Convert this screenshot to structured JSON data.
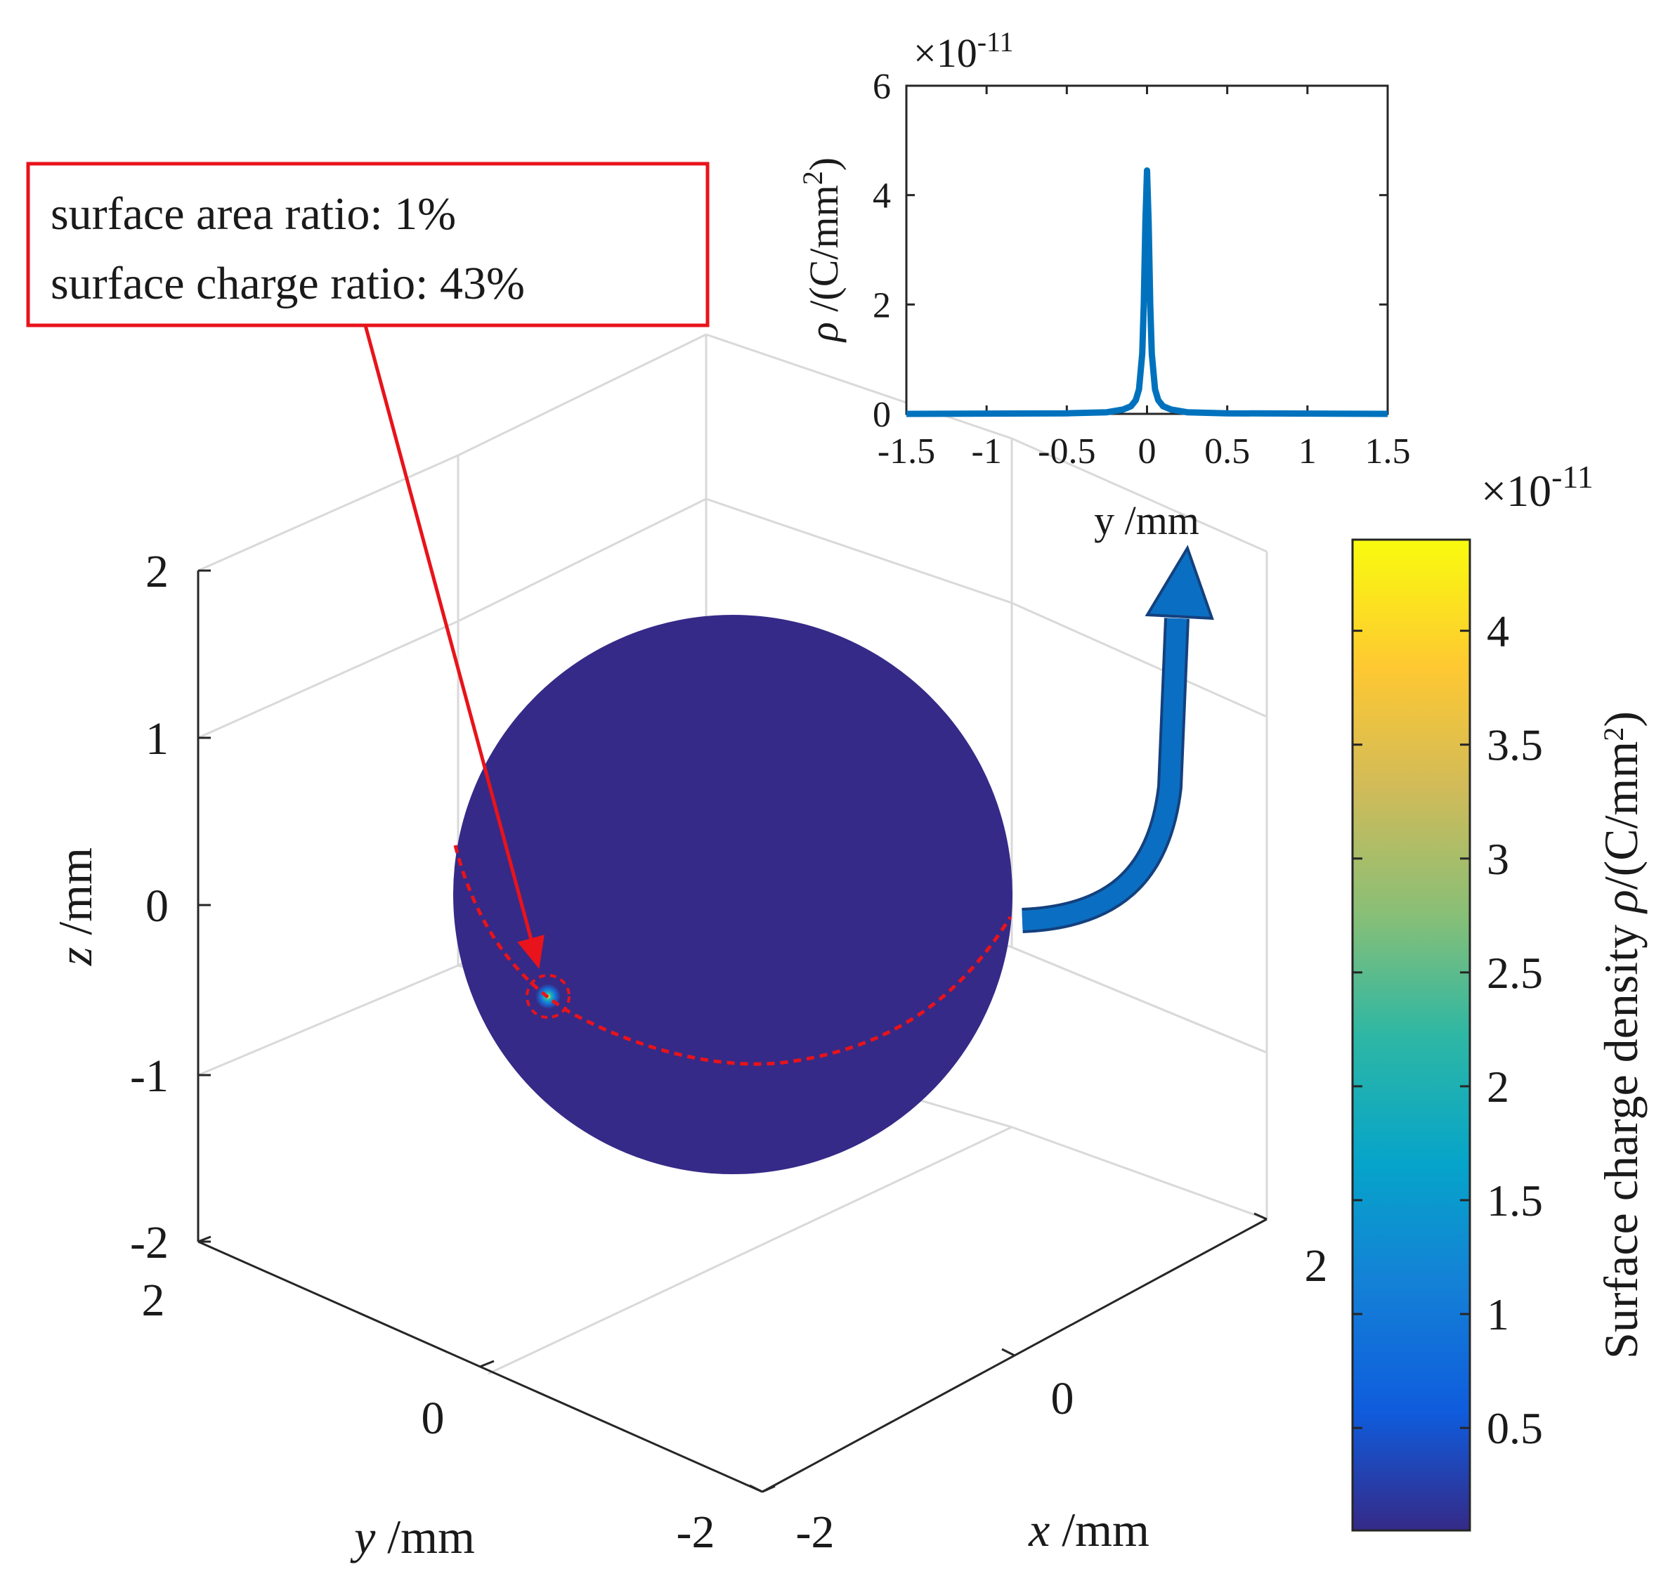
{
  "chart_data": [
    {
      "type": "surface",
      "description_type": "3D sphere surface colored by surface charge density",
      "xlabel_var": "x",
      "xlabel_unit": " /mm",
      "ylabel_var": "y",
      "ylabel_unit": " /mm",
      "zlabel_var": "z",
      "zlabel_unit": " /mm",
      "xlim": [
        -2,
        2
      ],
      "ylim": [
        -2,
        2
      ],
      "zlim": [
        -2,
        2
      ],
      "x_ticks": [
        "-2",
        "0",
        "2"
      ],
      "y_ticks": [
        "2",
        "0",
        "-2"
      ],
      "z_ticks": [
        "2",
        "1",
        "0",
        "-1",
        "-2"
      ],
      "sphere_color": "#352A87",
      "hotspot_color": "#19B2C0",
      "annotation_color": "#E8131B",
      "arrow_color": "#0A6FC2",
      "annotation": {
        "line1": "surface area ratio: 1%",
        "line2": "surface charge ratio: 43%"
      }
    },
    {
      "type": "line",
      "title": "",
      "exponent": "×10",
      "exponent_power": "-11",
      "xlabel": "y /mm",
      "ylabel_symbol": "ρ",
      "ylabel_unit": " /(C/mm",
      "ylabel_sup": "2",
      "ylabel_close": ")",
      "xlim": [
        -1.5,
        1.5
      ],
      "ylim": [
        0,
        6
      ],
      "x_ticks": [
        "-1.5",
        "-1",
        "-0.5",
        "0",
        "0.5",
        "1",
        "1.5"
      ],
      "y_ticks": [
        "0",
        "2",
        "4",
        "6"
      ],
      "series": [
        {
          "name": "rho",
          "color": "#0072BD",
          "x": [
            -1.5,
            -0.5,
            -0.25,
            -0.15,
            -0.1,
            -0.07,
            -0.05,
            -0.03,
            -0.02,
            -0.01,
            0,
            0.01,
            0.02,
            0.03,
            0.05,
            0.07,
            0.1,
            0.15,
            0.25,
            0.5,
            1.5
          ],
          "y": [
            0.0,
            0.01,
            0.03,
            0.08,
            0.14,
            0.25,
            0.45,
            1.1,
            2.0,
            3.5,
            4.45,
            3.5,
            2.0,
            1.1,
            0.45,
            0.25,
            0.14,
            0.08,
            0.03,
            0.01,
            0.0
          ]
        }
      ]
    },
    {
      "type": "colorbar",
      "label": "Surface charge density ",
      "label_symbol": "ρ",
      "label_unit": "/(C/mm",
      "label_sup": "2",
      "label_close": ")",
      "exponent": "×10",
      "exponent_power": "-11",
      "range": [
        0.05,
        4.4
      ],
      "ticks": [
        "0.5",
        "1",
        "1.5",
        "2",
        "2.5",
        "3",
        "3.5",
        "4"
      ],
      "tick_values": [
        0.5,
        1,
        1.5,
        2,
        2.5,
        3,
        3.5,
        4
      ],
      "colormap": [
        "#352A87",
        "#0F5CDD",
        "#1481D6",
        "#06A4CA",
        "#2EB7A4",
        "#87BF77",
        "#D1BB59",
        "#FEC832",
        "#F9FB0E"
      ]
    }
  ]
}
